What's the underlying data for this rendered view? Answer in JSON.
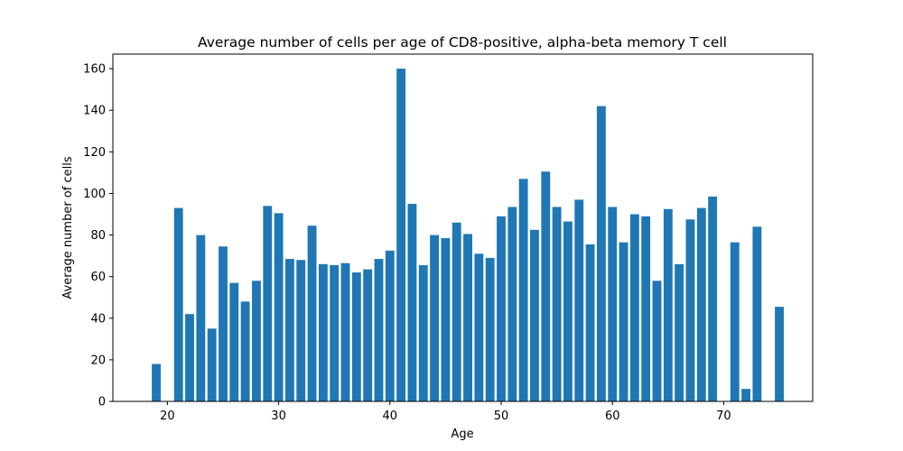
{
  "chart_data": {
    "type": "bar",
    "title": "Average number of cells per age of CD8-positive, alpha-beta memory T cell",
    "xlabel": "Age",
    "ylabel": "Average number of cells",
    "xlim": [
      15.1,
      78.0
    ],
    "ylim": [
      0,
      167
    ],
    "xticks": [
      20,
      30,
      40,
      50,
      60,
      70
    ],
    "yticks": [
      0,
      20,
      40,
      60,
      80,
      100,
      120,
      140,
      160
    ],
    "grid": false,
    "color": "#1f77b4",
    "x": [
      19,
      21,
      22,
      23,
      24,
      25,
      26,
      27,
      28,
      29,
      30,
      31,
      32,
      33,
      34,
      35,
      36,
      37,
      38,
      39,
      40,
      41,
      42,
      43,
      44,
      45,
      46,
      47,
      48,
      49,
      50,
      51,
      52,
      53,
      54,
      55,
      56,
      57,
      58,
      59,
      60,
      61,
      62,
      63,
      64,
      65,
      66,
      67,
      68,
      69,
      71,
      72,
      73,
      75
    ],
    "values": [
      18,
      93,
      42,
      80,
      35,
      74.5,
      57,
      48,
      58,
      94,
      90.5,
      68.5,
      68,
      84.5,
      66,
      65.5,
      66.5,
      62,
      63.5,
      68.5,
      72.5,
      160,
      95,
      65.5,
      80,
      78.5,
      86,
      80.5,
      71,
      69,
      89,
      93.5,
      107,
      82.5,
      110.5,
      93.5,
      86.5,
      97,
      75.5,
      142,
      93.5,
      76.5,
      90,
      89,
      58,
      92.5,
      66,
      87.5,
      93,
      98.5,
      76.5,
      6,
      84,
      45.5
    ]
  }
}
